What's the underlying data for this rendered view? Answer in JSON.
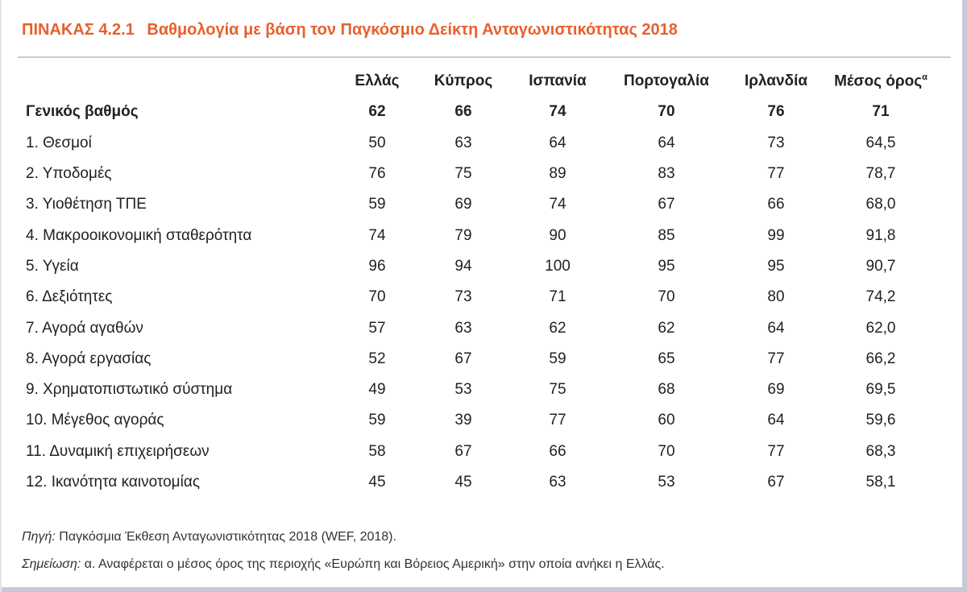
{
  "title": {
    "number": "ΠΙΝΑΚΑΣ 4.2.1",
    "text": "Βαθμολογία με βάση τον Παγκόσμιο Δείκτη Ανταγωνιστικότητας 2018"
  },
  "table": {
    "columns": [
      "Ελλάς",
      "Κύπρος",
      "Ισπανία",
      "Πορτογαλία",
      "Ιρλανδία",
      "Μέσος όρος"
    ],
    "average_superscript": "α",
    "rows": [
      {
        "label": "Γενικός βαθμός",
        "values": [
          "62",
          "66",
          "74",
          "70",
          "76",
          "71"
        ]
      },
      {
        "label": "1. Θεσμοί",
        "values": [
          "50",
          "63",
          "64",
          "64",
          "73",
          "64,5"
        ]
      },
      {
        "label": "2. Υποδομές",
        "values": [
          "76",
          "75",
          "89",
          "83",
          "77",
          "78,7"
        ]
      },
      {
        "label": "3. Υιοθέτηση ΤΠΕ",
        "values": [
          "59",
          "69",
          "74",
          "67",
          "66",
          "68,0"
        ]
      },
      {
        "label": "4. Μακροοικονομική σταθερότητα",
        "values": [
          "74",
          "79",
          "90",
          "85",
          "99",
          "91,8"
        ]
      },
      {
        "label": "5. Υγεία",
        "values": [
          "96",
          "94",
          "100",
          "95",
          "95",
          "90,7"
        ]
      },
      {
        "label": "6. Δεξιότητες",
        "values": [
          "70",
          "73",
          "71",
          "70",
          "80",
          "74,2"
        ]
      },
      {
        "label": "7. Αγορά αγαθών",
        "values": [
          "57",
          "63",
          "62",
          "62",
          "64",
          "62,0"
        ]
      },
      {
        "label": "8. Αγορά εργασίας",
        "values": [
          "52",
          "67",
          "59",
          "65",
          "77",
          "66,2"
        ]
      },
      {
        "label": "9. Χρηματοπιστωτικό σύστημα",
        "values": [
          "49",
          "53",
          "75",
          "68",
          "69",
          "69,5"
        ]
      },
      {
        "label": "10. Μέγεθος αγοράς",
        "values": [
          "59",
          "39",
          "77",
          "60",
          "64",
          "59,6"
        ]
      },
      {
        "label": "11. Δυναμική επιχειρήσεων",
        "values": [
          "58",
          "67",
          "66",
          "70",
          "77",
          "68,3"
        ]
      },
      {
        "label": "12. Ικανότητα καινοτομίας",
        "values": [
          "45",
          "45",
          "63",
          "53",
          "67",
          "58,1"
        ]
      }
    ]
  },
  "source": {
    "label": "Πηγή:",
    "text": "Παγκόσμια Έκθεση Ανταγωνιστικότητας 2018 (WEF, 2018)."
  },
  "note": {
    "label": "Σημείωση:",
    "text": "α. Αναφέρεται ο μέσος όρος της περιοχής «Ευρώπη και Βόρειος Αμερική» στην οποία ανήκει η Ελλάς."
  },
  "colors": {
    "title": "#e8602c",
    "frame": "#c8c9d8"
  }
}
